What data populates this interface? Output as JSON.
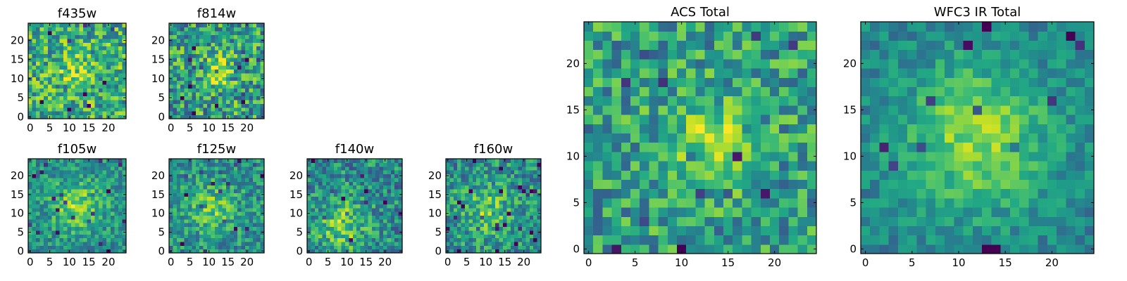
{
  "figure": {
    "colormap": "viridis"
  },
  "chart_data": [
    {
      "type": "heatmap",
      "title": "f435w",
      "xlim": [
        0,
        24
      ],
      "ylim": [
        0,
        24
      ],
      "xticks": [
        "0",
        "5",
        "10",
        "15",
        "20"
      ],
      "yticks": [
        "0",
        "5",
        "10",
        "15",
        "20"
      ],
      "source_peak": [
        12,
        12
      ],
      "source_strength": 0.2,
      "noise": 0.3,
      "base": 0.62,
      "scale": 3.0,
      "seed": 11
    },
    {
      "type": "heatmap",
      "title": "f814w",
      "xlim": [
        0,
        24
      ],
      "ylim": [
        0,
        24
      ],
      "xticks": [
        "0",
        "5",
        "10",
        "15",
        "20"
      ],
      "yticks": [
        "0",
        "5",
        "10",
        "15",
        "20"
      ],
      "source_peak": [
        12,
        12
      ],
      "source_strength": 0.3,
      "noise": 0.32,
      "base": 0.56,
      "scale": 3.0,
      "seed": 23
    },
    {
      "type": "heatmap",
      "title": "f105w",
      "xlim": [
        0,
        24
      ],
      "ylim": [
        0,
        24
      ],
      "xticks": [
        "0",
        "5",
        "10",
        "15",
        "20"
      ],
      "yticks": [
        "0",
        "5",
        "10",
        "15",
        "20"
      ],
      "source_peak": [
        12,
        12
      ],
      "source_strength": 0.32,
      "noise": 0.2,
      "base": 0.5,
      "scale": 4.5,
      "seed": 37
    },
    {
      "type": "heatmap",
      "title": "f125w",
      "xlim": [
        0,
        24
      ],
      "ylim": [
        0,
        24
      ],
      "xticks": [
        "0",
        "5",
        "10",
        "15",
        "20"
      ],
      "yticks": [
        "0",
        "5",
        "10",
        "15",
        "20"
      ],
      "source_peak": [
        11,
        11
      ],
      "source_strength": 0.25,
      "noise": 0.22,
      "base": 0.5,
      "scale": 4.5,
      "seed": 41
    },
    {
      "type": "heatmap",
      "title": "f140w",
      "xlim": [
        0,
        24
      ],
      "ylim": [
        0,
        24
      ],
      "xticks": [
        "0",
        "5",
        "10",
        "15",
        "20"
      ],
      "yticks": [
        "0",
        "5",
        "10",
        "15",
        "20"
      ],
      "source_peak": [
        9,
        7
      ],
      "source_strength": 0.3,
      "noise": 0.25,
      "base": 0.48,
      "scale": 4.5,
      "seed": 53
    },
    {
      "type": "heatmap",
      "title": "f160w",
      "xlim": [
        0,
        24
      ],
      "ylim": [
        0,
        24
      ],
      "xticks": [
        "0",
        "5",
        "10",
        "15",
        "20"
      ],
      "yticks": [
        "0",
        "5",
        "10",
        "15",
        "20"
      ],
      "source_peak": [
        10,
        11
      ],
      "source_strength": 0.25,
      "noise": 0.24,
      "base": 0.5,
      "scale": 4.5,
      "seed": 67
    },
    {
      "type": "heatmap",
      "title": "ACS Total",
      "xlim": [
        0,
        24
      ],
      "ylim": [
        0,
        24
      ],
      "xticks": [
        "0",
        "5",
        "10",
        "15",
        "20"
      ],
      "yticks": [
        "0",
        "5",
        "10",
        "15",
        "20"
      ],
      "source_peak": [
        13,
        12
      ],
      "source_strength": 0.3,
      "noise": 0.26,
      "base": 0.56,
      "scale": 3.0,
      "seed": 79
    },
    {
      "type": "heatmap",
      "title": "WFC3 IR Total",
      "xlim": [
        0,
        24
      ],
      "ylim": [
        0,
        24
      ],
      "xticks": [
        "0",
        "5",
        "10",
        "15",
        "20"
      ],
      "yticks": [
        "0",
        "5",
        "10",
        "15",
        "20"
      ],
      "source_peak": [
        12,
        12
      ],
      "source_strength": 0.38,
      "noise": 0.14,
      "base": 0.45,
      "scale": 5.5,
      "seed": 97
    }
  ]
}
